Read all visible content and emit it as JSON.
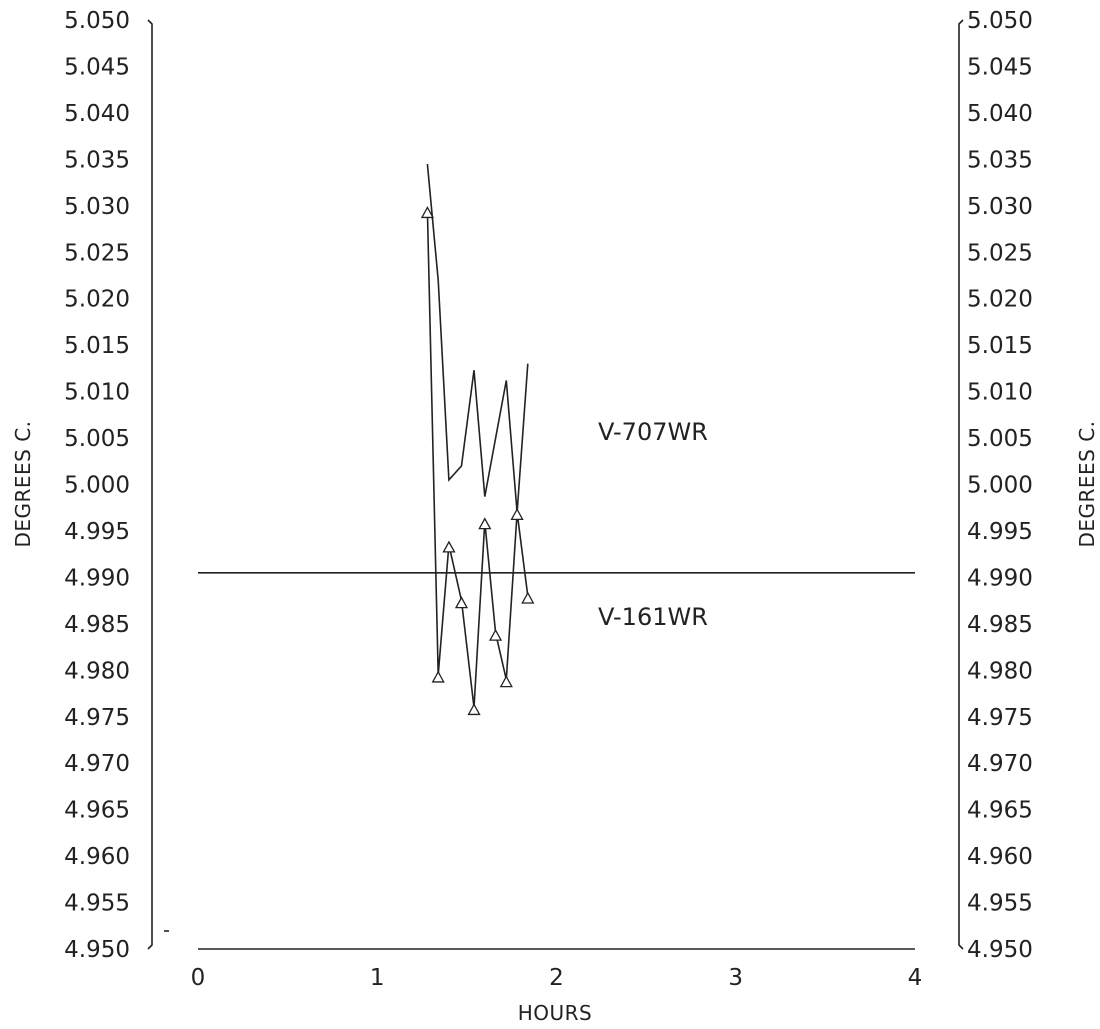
{
  "chart_data": {
    "type": "line",
    "xlabel": "HOURS",
    "ylabel_left": "DEGREES C.",
    "ylabel_right": "DEGREES C.",
    "xlim": [
      0,
      4
    ],
    "ylim": [
      4.95,
      5.05
    ],
    "x_ticks": [
      "0",
      "1",
      "2",
      "3",
      "4"
    ],
    "y_ticks": [
      "5.050",
      "5.045",
      "5.040",
      "5.035",
      "5.030",
      "5.025",
      "5.020",
      "5.015",
      "5.010",
      "5.005",
      "5.000",
      "4.995",
      "4.990",
      "4.985",
      "4.980",
      "4.975",
      "4.970",
      "4.965",
      "4.960",
      "4.955",
      "4.950"
    ],
    "grid": false,
    "series": [
      {
        "name": "V-707WR",
        "marker": "none",
        "x": [
          1.28,
          1.34,
          1.4,
          1.47,
          1.54,
          1.6,
          1.66,
          1.72,
          1.78,
          1.84
        ],
        "y": [
          5.0345,
          5.022,
          5.0005,
          5.002,
          5.0123,
          4.9987,
          5.005,
          5.0112,
          4.997,
          5.013
        ]
      },
      {
        "name": "V-161WR",
        "marker": "triangle",
        "x": [
          1.28,
          1.34,
          1.4,
          1.47,
          1.54,
          1.6,
          1.66,
          1.72,
          1.78,
          1.84
        ],
        "y": [
          5.0295,
          4.9795,
          4.9935,
          4.9875,
          4.976,
          4.996,
          4.984,
          4.979,
          4.997,
          4.988
        ]
      },
      {
        "name": "",
        "marker": "none",
        "x": [
          0,
          4
        ],
        "y": [
          4.9905,
          4.9905
        ]
      }
    ]
  }
}
